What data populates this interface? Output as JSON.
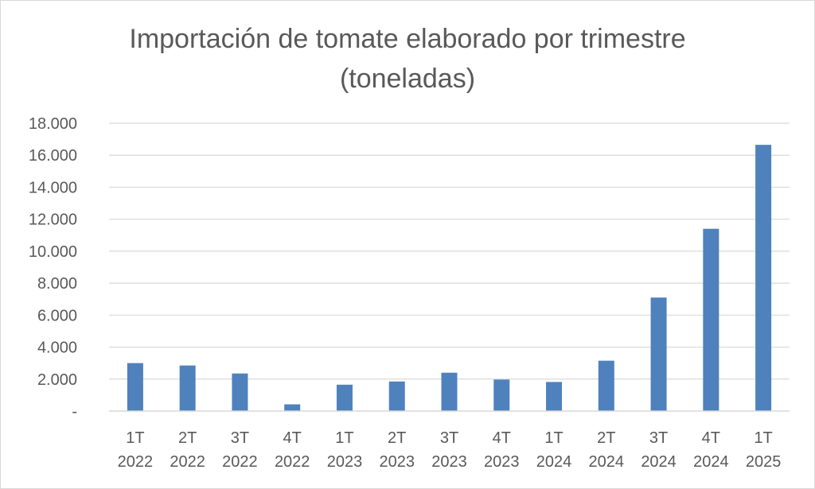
{
  "chart_data": {
    "type": "bar",
    "title_lines": [
      "Importación de tomate elaborado por trimestre",
      "(toneladas)"
    ],
    "xlabel": "",
    "ylabel": "",
    "categories": [
      [
        "1T",
        "2022"
      ],
      [
        "2T",
        "2022"
      ],
      [
        "3T",
        "2022"
      ],
      [
        "4T",
        "2022"
      ],
      [
        "1T",
        "2023"
      ],
      [
        "2T",
        "2023"
      ],
      [
        "3T",
        "2023"
      ],
      [
        "4T",
        "2023"
      ],
      [
        "1T",
        "2024"
      ],
      [
        "2T",
        "2024"
      ],
      [
        "3T",
        "2024"
      ],
      [
        "4T",
        "2024"
      ],
      [
        "1T",
        "2025"
      ]
    ],
    "values": [
      3000,
      2850,
      2350,
      420,
      1650,
      1850,
      2400,
      1970,
      1820,
      3150,
      7100,
      11400,
      16650
    ],
    "ylim": [
      0,
      18000
    ],
    "yticks": [
      {
        "value": 0,
        "label": "-"
      },
      {
        "value": 2000,
        "label": "2.000"
      },
      {
        "value": 4000,
        "label": "4.000"
      },
      {
        "value": 6000,
        "label": "6.000"
      },
      {
        "value": 8000,
        "label": "8.000"
      },
      {
        "value": 10000,
        "label": "10.000"
      },
      {
        "value": 12000,
        "label": "12.000"
      },
      {
        "value": 14000,
        "label": "14.000"
      },
      {
        "value": 16000,
        "label": "16.000"
      },
      {
        "value": 18000,
        "label": "18.000"
      }
    ],
    "grid": true,
    "legend": "none",
    "bar_color": "#4f81bd",
    "grid_color": "#d9d9d9",
    "text_color": "#595959"
  }
}
